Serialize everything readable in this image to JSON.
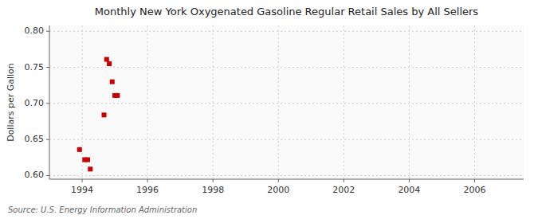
{
  "chart_data": {
    "type": "scatter",
    "title": "Monthly New York Oxygenated Gasoline Regular Retail Sales by All Sellers",
    "y_label": "Dollars per Gallon",
    "source": "Source: U.S. Energy Information Administration",
    "x": [
      1993.92,
      1994.08,
      1994.17,
      1994.25,
      1994.67,
      1994.75,
      1994.83,
      1994.92,
      1995.0,
      1995.08
    ],
    "values": [
      0.636,
      0.622,
      0.622,
      0.609,
      0.684,
      0.761,
      0.755,
      0.73,
      0.711,
      0.711
    ],
    "xlim": [
      1993.0,
      2007.5
    ],
    "ylim": [
      0.595,
      0.808
    ],
    "xticks": [
      1994,
      1996,
      1998,
      2000,
      2002,
      2004,
      2006
    ],
    "yticks": [
      {
        "value": 0.6,
        "label": "0.60"
      },
      0.65,
      {
        "value": 0.7,
        "label": "0.70"
      },
      0.75,
      {
        "value": 0.8,
        "label": "0.80"
      }
    ],
    "color": "#cc0000",
    "marker": "square",
    "grid": true
  }
}
